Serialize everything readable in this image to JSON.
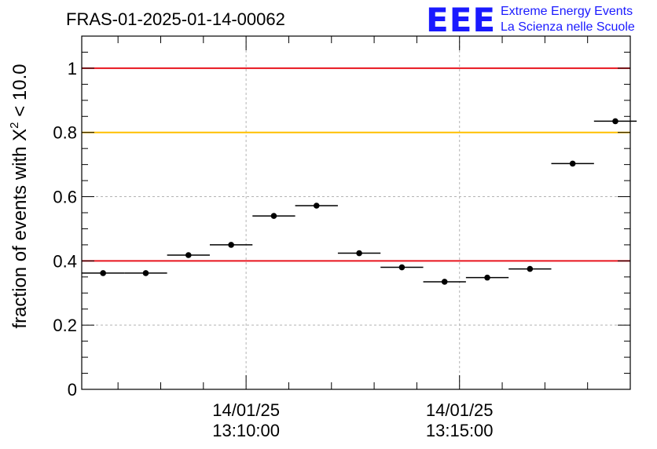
{
  "header": {
    "title": "FRAS-01-2025-01-14-00062"
  },
  "brand": {
    "logo": "EEE",
    "line1": "Extreme Energy Events",
    "line2": "La Scienza nelle Scuole",
    "color": "#1a1aff"
  },
  "chart_data": {
    "type": "scatter",
    "title": "FRAS-01-2025-01-14-00062",
    "ylabel_prefix": "fraction of events with ",
    "ylabel_symbol": "X",
    "ylabel_exponent": "2",
    "ylabel_suffix": " < 10.0",
    "xlabel": "",
    "x_axis": "time",
    "x_unit": "minutes after 13:06:00 on 14/01/25",
    "xlim": [
      0,
      12.85
    ],
    "ylim": [
      0,
      1.1
    ],
    "y_ticks": [
      0,
      0.2,
      0.4,
      0.6,
      0.8,
      1
    ],
    "y_tick_labels": [
      "0",
      "0.2",
      "0.4",
      "0.6",
      "0.8",
      "1"
    ],
    "x_ticks": [
      {
        "at": 3.85,
        "date": "14/01/25",
        "time": "13:10:00"
      },
      {
        "at": 8.85,
        "date": "14/01/25",
        "time": "13:15:00"
      }
    ],
    "grid": true,
    "bin_width_min": 1,
    "series": [
      {
        "x": [
          0.5,
          1.5,
          2.5,
          3.5,
          4.5,
          5.5,
          6.5,
          7.5,
          8.5,
          9.5,
          10.5,
          11.5,
          12.5
        ],
        "values": [
          0.362,
          0.362,
          0.418,
          0.45,
          0.54,
          0.572,
          0.424,
          0.38,
          0.335,
          0.348,
          0.375,
          0.703,
          0.835
        ],
        "color": "#000000"
      }
    ],
    "reference_lines": [
      {
        "y": 1.0,
        "color": "#e8141e"
      },
      {
        "y": 0.8,
        "color": "#ffc000"
      },
      {
        "y": 0.4,
        "color": "#e8141e"
      }
    ]
  }
}
